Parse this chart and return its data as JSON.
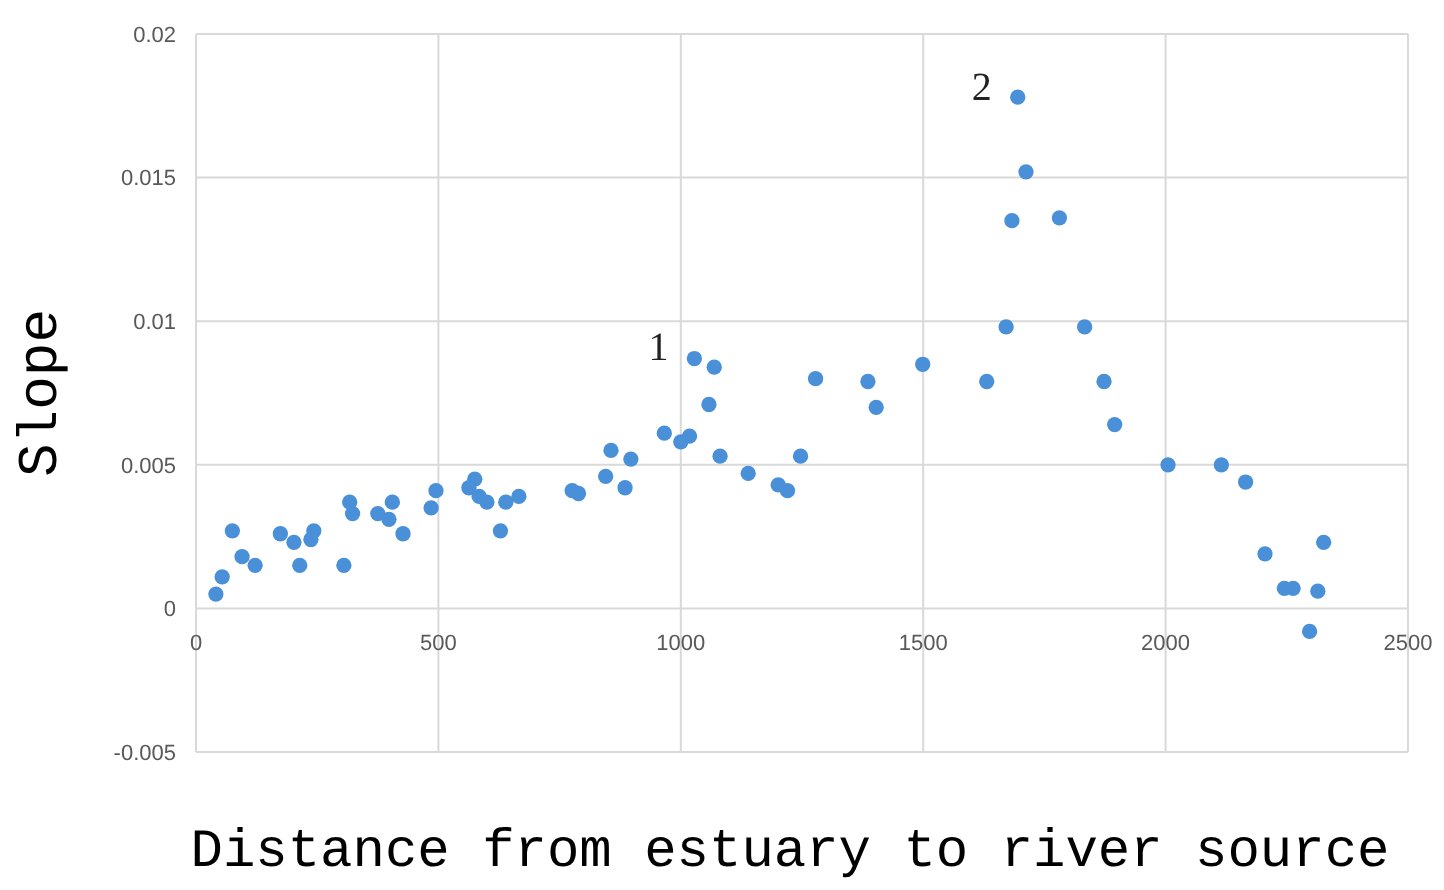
{
  "chart_data": {
    "type": "scatter",
    "xlabel": "Distance from estuary to river source",
    "ylabel": "Slope",
    "x": [
      41,
      54,
      75,
      95,
      122,
      174,
      202,
      214,
      237,
      243,
      305,
      317,
      323,
      375,
      398,
      405,
      427,
      485,
      495,
      563,
      575,
      584,
      600,
      628,
      639,
      666,
      776,
      789,
      845,
      856,
      885,
      897,
      966,
      1000,
      1018,
      1028,
      1058,
      1069,
      1081,
      1139,
      1201,
      1220,
      1247,
      1278,
      1386,
      1403,
      1499,
      1631,
      1671,
      1683,
      1695,
      1712,
      1781,
      1833,
      1873,
      1895,
      2005,
      2115,
      2165,
      2205,
      2245,
      2263,
      2297,
      2314,
      2326
    ],
    "values": [
      0.0005,
      0.0011,
      0.0027,
      0.0018,
      0.0015,
      0.0026,
      0.0023,
      0.0015,
      0.0024,
      0.0027,
      0.0015,
      0.0037,
      0.0033,
      0.0033,
      0.0031,
      0.0037,
      0.0026,
      0.0035,
      0.0041,
      0.0042,
      0.0045,
      0.0039,
      0.0037,
      0.0027,
      0.0037,
      0.0039,
      0.0041,
      0.004,
      0.0046,
      0.0055,
      0.0042,
      0.0052,
      0.0061,
      0.0058,
      0.006,
      0.0087,
      0.0071,
      0.0084,
      0.0053,
      0.0047,
      0.0043,
      0.0041,
      0.0053,
      0.008,
      0.0079,
      0.007,
      0.0085,
      0.0079,
      0.0098,
      0.0135,
      0.0178,
      0.0152,
      0.0136,
      0.0098,
      0.0079,
      0.0064,
      0.005,
      0.005,
      0.0044,
      0.0019,
      0.0007,
      0.0007,
      -0.0008,
      0.0006,
      0.0023
    ],
    "color": "#4a90d9",
    "marker": "circle",
    "xlim": [
      0,
      2500
    ],
    "xticks": [
      0,
      500,
      1000,
      1500,
      2000,
      2500
    ],
    "ylim": [
      -0.005,
      0.02
    ],
    "yticks": [
      -0.005,
      0,
      0.005,
      0.01,
      0.015,
      0.02
    ],
    "grid": true,
    "annotations": [
      {
        "text": "1",
        "x": 1028,
        "y": 0.0087
      },
      {
        "text": "2",
        "x": 1695,
        "y": 0.0178
      }
    ]
  }
}
